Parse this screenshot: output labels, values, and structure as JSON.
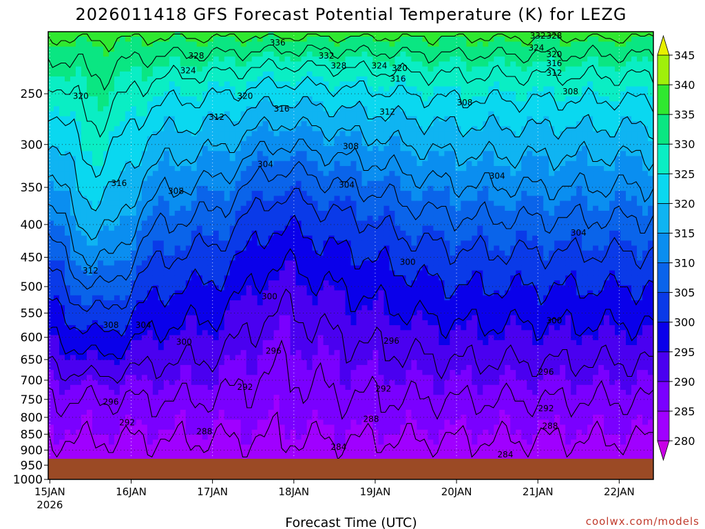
{
  "chart_data": {
    "type": "heatmap",
    "title": "2026011418 GFS Forecast Potential Temperature (K) for LEZG",
    "xlabel": "Forecast Time (UTC)",
    "ylabel": "",
    "credit": "coolwx.com/models",
    "x_ticks": [
      {
        "label": "15JAN",
        "sublabel": "2026",
        "day": 0
      },
      {
        "label": "16JAN",
        "day": 1
      },
      {
        "label": "17JAN",
        "day": 2
      },
      {
        "label": "18JAN",
        "day": 3
      },
      {
        "label": "19JAN",
        "day": 4
      },
      {
        "label": "20JAN",
        "day": 5
      },
      {
        "label": "21JAN",
        "day": 6
      },
      {
        "label": "22JAN",
        "day": 7
      }
    ],
    "xlim_days": [
      -0.02,
      7.42
    ],
    "y_ticks": [
      250,
      300,
      350,
      400,
      450,
      500,
      550,
      600,
      650,
      700,
      750,
      800,
      850,
      900,
      950,
      1000
    ],
    "ylim_hpa": [
      200,
      1000
    ],
    "y_scale": "log",
    "surface_hpa": 975,
    "grid": "dotted",
    "colorbar": {
      "levels": [
        280,
        285,
        290,
        295,
        300,
        305,
        310,
        315,
        320,
        325,
        330,
        335,
        340,
        345
      ],
      "colors": [
        "#c800e6",
        "#a000ff",
        "#7a00ff",
        "#4a00f0",
        "#0a00ea",
        "#0a3ae8",
        "#0a64ea",
        "#0a8ef0",
        "#0fb4f2",
        "#0ad8f0",
        "#0aeec4",
        "#0ae682",
        "#30e830",
        "#a0f00a",
        "#e8f000"
      ],
      "extend": "both"
    },
    "contour_labels": [
      {
        "day": 2.8,
        "hpa": 208,
        "text": "336"
      },
      {
        "day": 1.8,
        "hpa": 218,
        "text": "328"
      },
      {
        "day": 1.7,
        "hpa": 230,
        "text": "324"
      },
      {
        "day": 3.4,
        "hpa": 218,
        "text": "332"
      },
      {
        "day": 3.55,
        "hpa": 226,
        "text": "328"
      },
      {
        "day": 4.05,
        "hpa": 226,
        "text": "324"
      },
      {
        "day": 4.3,
        "hpa": 228,
        "text": "320"
      },
      {
        "day": 4.28,
        "hpa": 237,
        "text": "316"
      },
      {
        "day": 6.0,
        "hpa": 203,
        "text": "332"
      },
      {
        "day": 6.2,
        "hpa": 203,
        "text": "328"
      },
      {
        "day": 5.98,
        "hpa": 212,
        "text": "324"
      },
      {
        "day": 6.2,
        "hpa": 217,
        "text": "320"
      },
      {
        "day": 6.2,
        "hpa": 224,
        "text": "316"
      },
      {
        "day": 6.2,
        "hpa": 232,
        "text": "312"
      },
      {
        "day": 6.4,
        "hpa": 248,
        "text": "308"
      },
      {
        "day": 0.38,
        "hpa": 252,
        "text": "320"
      },
      {
        "day": 2.4,
        "hpa": 252,
        "text": "320"
      },
      {
        "day": 2.85,
        "hpa": 264,
        "text": "316"
      },
      {
        "day": 2.05,
        "hpa": 272,
        "text": "312"
      },
      {
        "day": 4.15,
        "hpa": 267,
        "text": "312"
      },
      {
        "day": 5.1,
        "hpa": 258,
        "text": "308"
      },
      {
        "day": 3.7,
        "hpa": 302,
        "text": "308"
      },
      {
        "day": 2.65,
        "hpa": 322,
        "text": "304"
      },
      {
        "day": 0.85,
        "hpa": 345,
        "text": "316"
      },
      {
        "day": 1.55,
        "hpa": 355,
        "text": "308"
      },
      {
        "day": 3.65,
        "hpa": 347,
        "text": "304"
      },
      {
        "day": 5.5,
        "hpa": 336,
        "text": "304"
      },
      {
        "day": 6.5,
        "hpa": 412,
        "text": "304"
      },
      {
        "day": 0.5,
        "hpa": 472,
        "text": "312"
      },
      {
        "day": 4.4,
        "hpa": 458,
        "text": "300"
      },
      {
        "day": 2.7,
        "hpa": 518,
        "text": "300"
      },
      {
        "day": 6.2,
        "hpa": 565,
        "text": "300"
      },
      {
        "day": 0.75,
        "hpa": 574,
        "text": "308"
      },
      {
        "day": 1.15,
        "hpa": 574,
        "text": "304"
      },
      {
        "day": 1.65,
        "hpa": 610,
        "text": "300"
      },
      {
        "day": 2.75,
        "hpa": 630,
        "text": "296"
      },
      {
        "day": 4.2,
        "hpa": 608,
        "text": "296"
      },
      {
        "day": 6.1,
        "hpa": 680,
        "text": "296"
      },
      {
        "day": 2.4,
        "hpa": 718,
        "text": "292"
      },
      {
        "day": 4.1,
        "hpa": 722,
        "text": "292"
      },
      {
        "day": 6.1,
        "hpa": 775,
        "text": "292"
      },
      {
        "day": 0.75,
        "hpa": 757,
        "text": "296"
      },
      {
        "day": 0.95,
        "hpa": 815,
        "text": "292"
      },
      {
        "day": 1.9,
        "hpa": 842,
        "text": "288"
      },
      {
        "day": 3.95,
        "hpa": 805,
        "text": "288"
      },
      {
        "day": 6.15,
        "hpa": 825,
        "text": "288"
      },
      {
        "day": 3.55,
        "hpa": 890,
        "text": "284"
      },
      {
        "day": 5.6,
        "hpa": 915,
        "text": "284"
      }
    ]
  }
}
